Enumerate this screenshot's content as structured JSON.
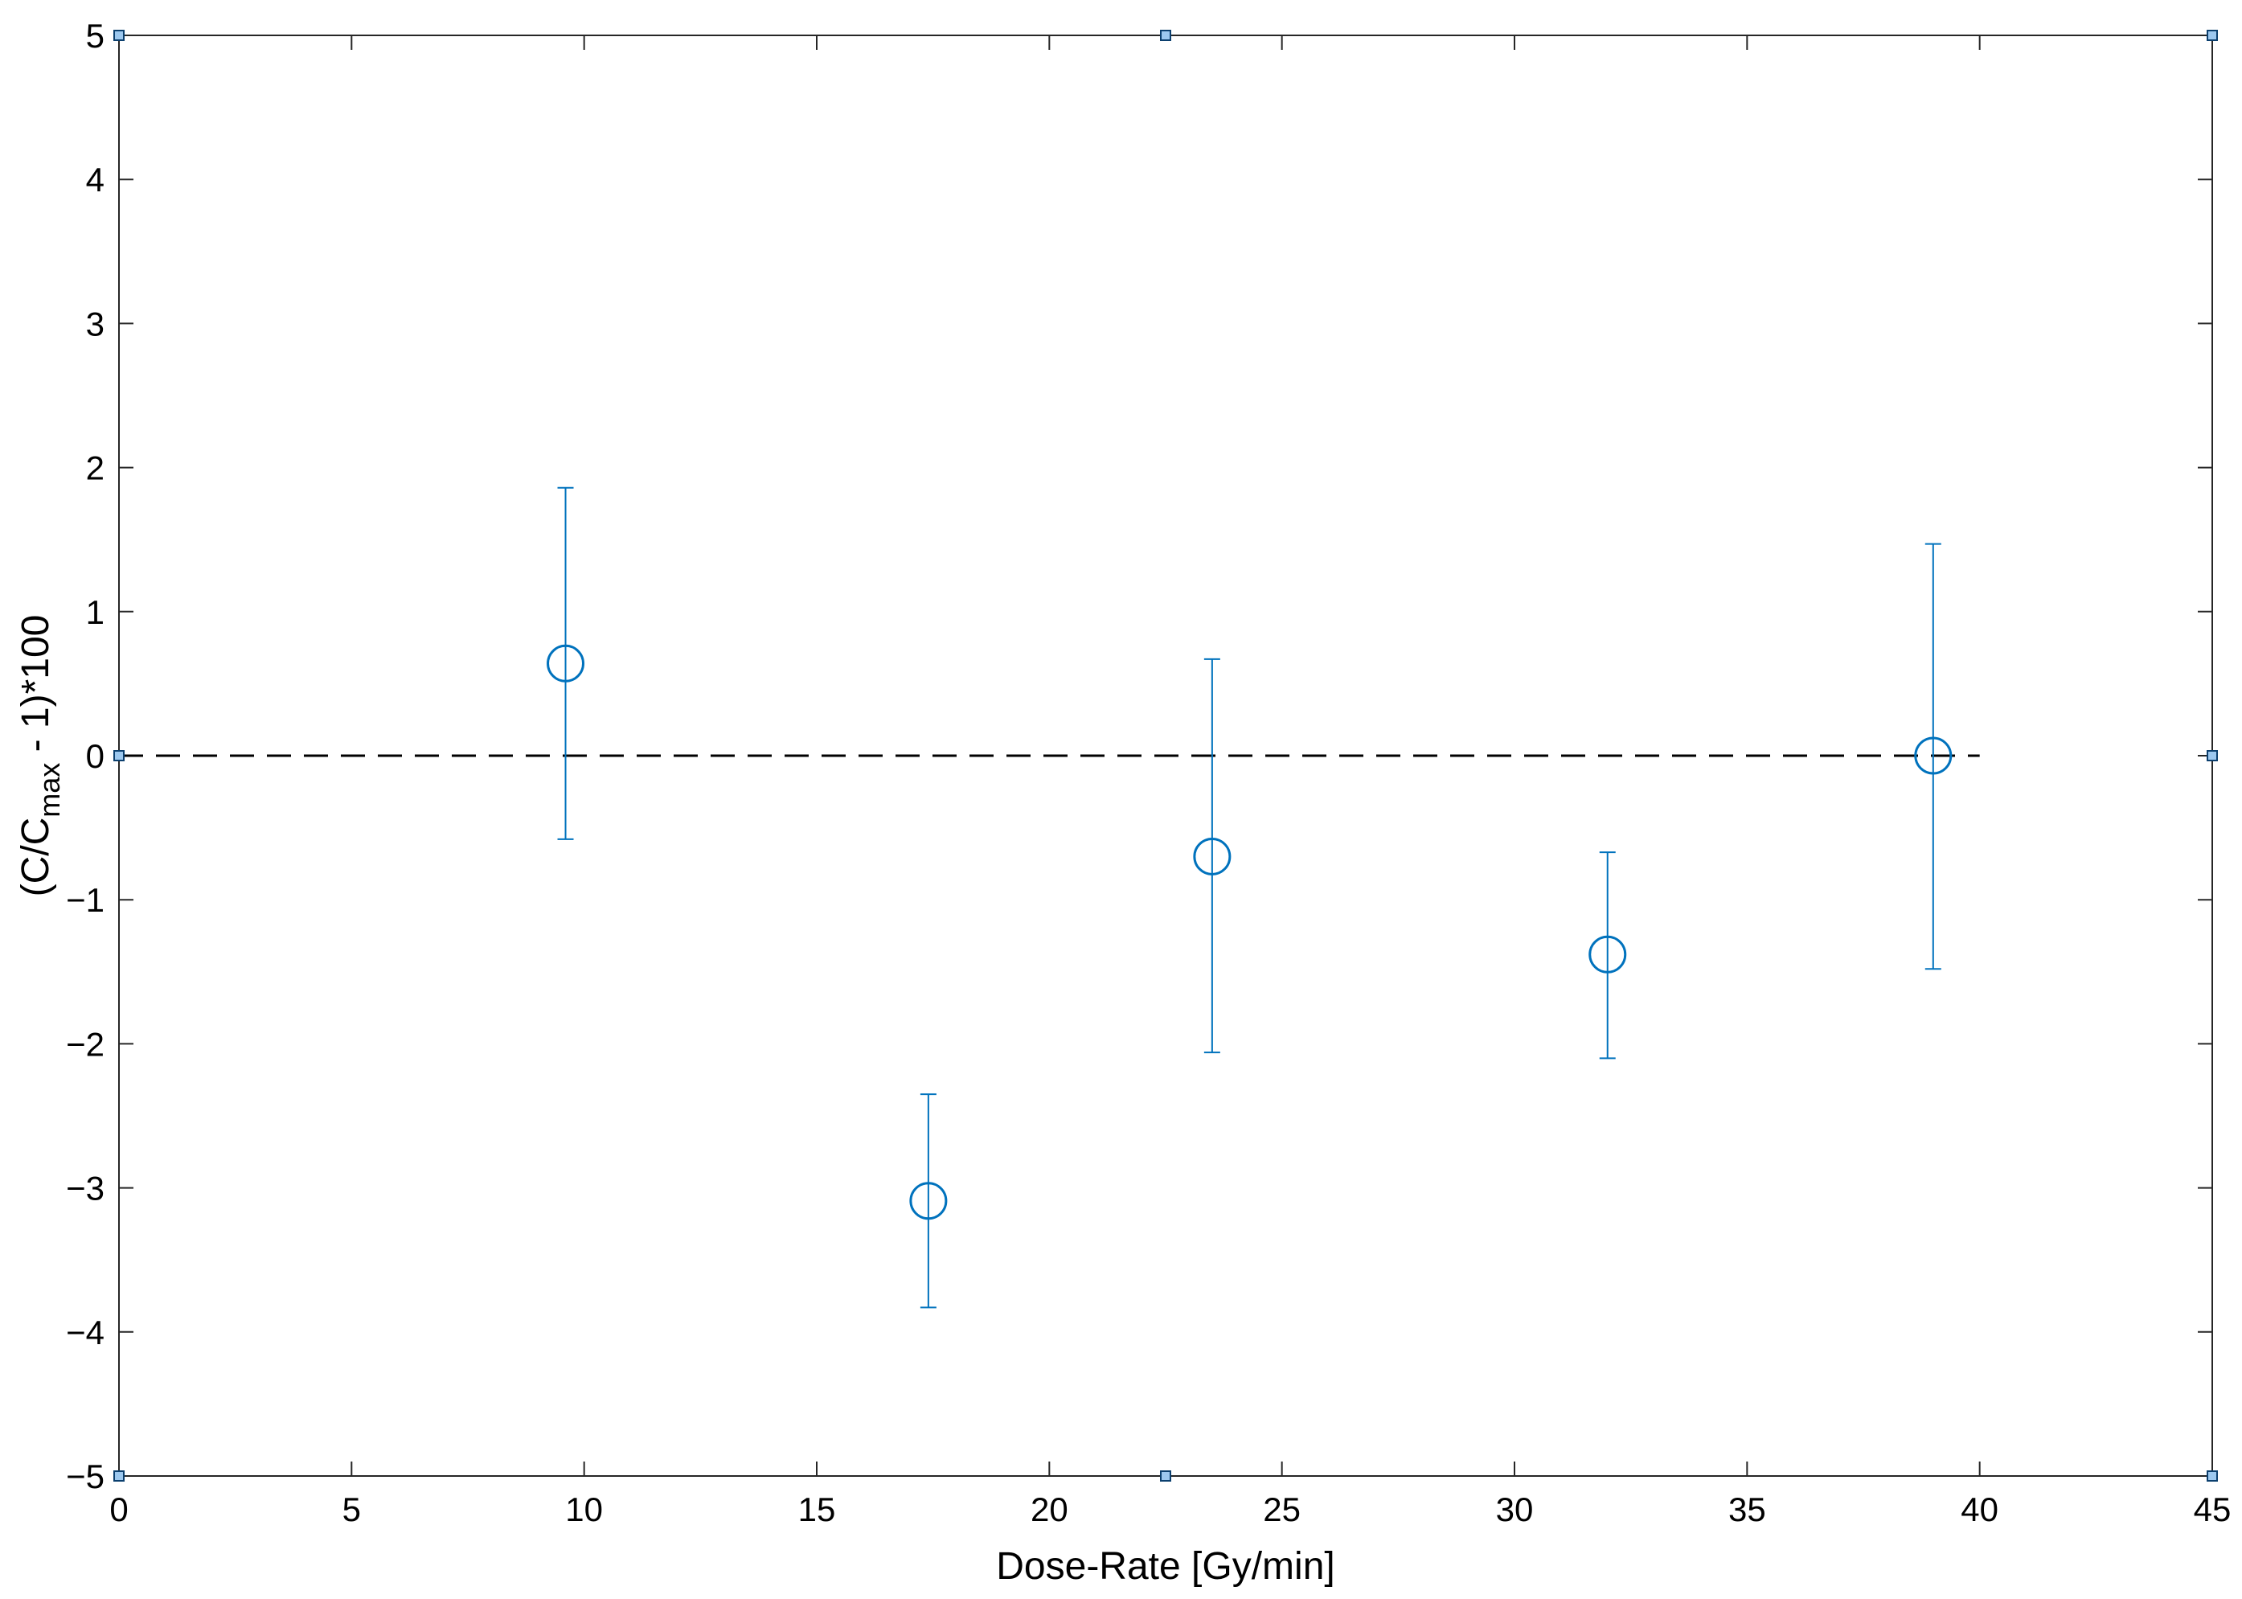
{
  "chart_data": {
    "type": "scatter",
    "xlabel": "Dose-Rate [Gy/min]",
    "ylabel": {
      "prefix": "(C/C",
      "subscript": "max",
      "suffix": " - 1)*100"
    },
    "xlim": [
      0,
      45
    ],
    "ylim": [
      -5,
      5
    ],
    "xticks": [
      0,
      5,
      10,
      15,
      20,
      25,
      30,
      35,
      40,
      45
    ],
    "yticks": [
      -5,
      -4,
      -3,
      -2,
      -1,
      0,
      1,
      2,
      3,
      4,
      5
    ],
    "grid": false,
    "series": [
      {
        "marker": "circle",
        "color": "#0072BD",
        "points": [
          {
            "x": 9.6,
            "y": 0.64,
            "err_low": -0.58,
            "err_high": 1.86
          },
          {
            "x": 17.4,
            "y": -3.09,
            "err_low": -3.83,
            "err_high": -2.35
          },
          {
            "x": 23.5,
            "y": -0.7,
            "err_low": -2.06,
            "err_high": 0.67
          },
          {
            "x": 32.0,
            "y": -1.38,
            "err_low": -2.1,
            "err_high": -0.67
          },
          {
            "x": 39.0,
            "y": 0.0,
            "err_low": -1.48,
            "err_high": 1.47
          }
        ]
      }
    ],
    "reference_line": {
      "y": 0,
      "x_from": 0,
      "x_to": 40,
      "style": "dashed",
      "color": "#000000"
    },
    "corner_markers": [
      {
        "x": 0,
        "y": 5
      },
      {
        "x": 22.5,
        "y": 5
      },
      {
        "x": 45,
        "y": 5
      },
      {
        "x": 0,
        "y": 0
      },
      {
        "x": 45,
        "y": 0
      },
      {
        "x": 0,
        "y": -5
      },
      {
        "x": 22.5,
        "y": -5
      },
      {
        "x": 45,
        "y": -5
      }
    ]
  }
}
